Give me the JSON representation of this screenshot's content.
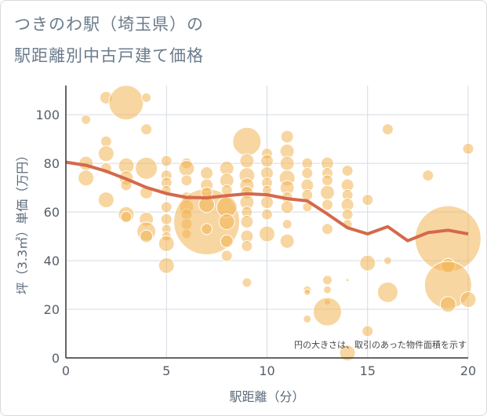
{
  "title_lines": [
    "つきのわ駅（埼玉県）の",
    "駅距離別中古戸建て価格"
  ],
  "chart_data": {
    "type": "scatter",
    "xlabel": "駅距離（分）",
    "ylabel": "坪（3.3㎡）単価（万円）",
    "note": "円の大きさは、取引のあった物件面積を示す",
    "xlim": [
      0,
      20
    ],
    "ylim": [
      0,
      112
    ],
    "xticks": [
      0,
      5,
      10,
      15,
      20
    ],
    "yticks": [
      0,
      20,
      40,
      60,
      80,
      100
    ],
    "colors": {
      "bubble": "#f3b453",
      "trend": "#d4694c",
      "grid": "#d3dae3"
    },
    "bubbles": [
      {
        "x": 1,
        "y": 98,
        "s": 6
      },
      {
        "x": 2,
        "y": 107,
        "s": 8
      },
      {
        "x": 3,
        "y": 105,
        "s": 22
      },
      {
        "x": 4,
        "y": 107,
        "s": 6
      },
      {
        "x": 1,
        "y": 80,
        "s": 9
      },
      {
        "x": 1,
        "y": 74,
        "s": 10
      },
      {
        "x": 2,
        "y": 89,
        "s": 7
      },
      {
        "x": 2,
        "y": 84,
        "s": 10
      },
      {
        "x": 2,
        "y": 78,
        "s": 7
      },
      {
        "x": 2,
        "y": 65,
        "s": 10
      },
      {
        "x": 3,
        "y": 79,
        "s": 10
      },
      {
        "x": 3,
        "y": 74,
        "s": 9
      },
      {
        "x": 3,
        "y": 71,
        "s": 7
      },
      {
        "x": 3,
        "y": 59,
        "s": 10
      },
      {
        "x": 3,
        "y": 58,
        "s": 7
      },
      {
        "x": 4,
        "y": 94,
        "s": 7
      },
      {
        "x": 4,
        "y": 78,
        "s": 14
      },
      {
        "x": 4,
        "y": 68,
        "s": 8
      },
      {
        "x": 4,
        "y": 57,
        "s": 9
      },
      {
        "x": 4,
        "y": 52,
        "s": 12
      },
      {
        "x": 4,
        "y": 50,
        "s": 8
      },
      {
        "x": 5,
        "y": 81,
        "s": 7
      },
      {
        "x": 5,
        "y": 75,
        "s": 7
      },
      {
        "x": 5,
        "y": 72,
        "s": 7
      },
      {
        "x": 5,
        "y": 69,
        "s": 6
      },
      {
        "x": 5,
        "y": 62,
        "s": 7
      },
      {
        "x": 5,
        "y": 57,
        "s": 7
      },
      {
        "x": 5,
        "y": 53,
        "s": 6
      },
      {
        "x": 5,
        "y": 50,
        "s": 6
      },
      {
        "x": 5,
        "y": 47,
        "s": 10
      },
      {
        "x": 5,
        "y": 38,
        "s": 10
      },
      {
        "x": 6,
        "y": 80,
        "s": 7
      },
      {
        "x": 6,
        "y": 78,
        "s": 10
      },
      {
        "x": 6,
        "y": 73,
        "s": 7
      },
      {
        "x": 6,
        "y": 66,
        "s": 7
      },
      {
        "x": 6,
        "y": 62,
        "s": 9
      },
      {
        "x": 6,
        "y": 59,
        "s": 7
      },
      {
        "x": 6,
        "y": 55,
        "s": 7
      },
      {
        "x": 6,
        "y": 51,
        "s": 6
      },
      {
        "x": 7,
        "y": 56,
        "s": 42
      },
      {
        "x": 7,
        "y": 76,
        "s": 8
      },
      {
        "x": 7,
        "y": 71,
        "s": 8
      },
      {
        "x": 7,
        "y": 68,
        "s": 7
      },
      {
        "x": 7,
        "y": 63,
        "s": 10
      },
      {
        "x": 7,
        "y": 53,
        "s": 7
      },
      {
        "x": 8,
        "y": 78,
        "s": 9
      },
      {
        "x": 8,
        "y": 73,
        "s": 9
      },
      {
        "x": 8,
        "y": 69,
        "s": 7
      },
      {
        "x": 8,
        "y": 62,
        "s": 13
      },
      {
        "x": 8,
        "y": 56,
        "s": 10
      },
      {
        "x": 8,
        "y": 48,
        "s": 8
      },
      {
        "x": 8,
        "y": 42,
        "s": 7
      },
      {
        "x": 9,
        "y": 89,
        "s": 18
      },
      {
        "x": 9,
        "y": 81,
        "s": 9
      },
      {
        "x": 9,
        "y": 75,
        "s": 10
      },
      {
        "x": 9,
        "y": 71,
        "s": 9
      },
      {
        "x": 9,
        "y": 68,
        "s": 8
      },
      {
        "x": 9,
        "y": 64,
        "s": 9
      },
      {
        "x": 9,
        "y": 60,
        "s": 7
      },
      {
        "x": 9,
        "y": 56,
        "s": 8
      },
      {
        "x": 9,
        "y": 50,
        "s": 8
      },
      {
        "x": 9,
        "y": 46,
        "s": 7
      },
      {
        "x": 9,
        "y": 31,
        "s": 6
      },
      {
        "x": 10,
        "y": 84,
        "s": 7
      },
      {
        "x": 10,
        "y": 81,
        "s": 8
      },
      {
        "x": 10,
        "y": 76,
        "s": 8
      },
      {
        "x": 10,
        "y": 72,
        "s": 7
      },
      {
        "x": 10,
        "y": 69,
        "s": 6
      },
      {
        "x": 10,
        "y": 64,
        "s": 8
      },
      {
        "x": 10,
        "y": 59,
        "s": 7
      },
      {
        "x": 10,
        "y": 51,
        "s": 10
      },
      {
        "x": 11,
        "y": 91,
        "s": 8
      },
      {
        "x": 11,
        "y": 85,
        "s": 9
      },
      {
        "x": 11,
        "y": 80,
        "s": 9
      },
      {
        "x": 11,
        "y": 74,
        "s": 10
      },
      {
        "x": 11,
        "y": 70,
        "s": 9
      },
      {
        "x": 11,
        "y": 66,
        "s": 7
      },
      {
        "x": 11,
        "y": 62,
        "s": 8
      },
      {
        "x": 11,
        "y": 55,
        "s": 6
      },
      {
        "x": 11,
        "y": 48,
        "s": 9
      },
      {
        "x": 12,
        "y": 80,
        "s": 7
      },
      {
        "x": 12,
        "y": 76,
        "s": 7
      },
      {
        "x": 12,
        "y": 71,
        "s": 8
      },
      {
        "x": 12,
        "y": 67,
        "s": 7
      },
      {
        "x": 12,
        "y": 62,
        "s": 6
      },
      {
        "x": 12,
        "y": 28,
        "s": 5
      },
      {
        "x": 12,
        "y": 27,
        "s": 4
      },
      {
        "x": 12,
        "y": 16,
        "s": 5
      },
      {
        "x": 13,
        "y": 80,
        "s": 8
      },
      {
        "x": 13,
        "y": 76,
        "s": 7
      },
      {
        "x": 13,
        "y": 73,
        "s": 7
      },
      {
        "x": 13,
        "y": 68,
        "s": 9
      },
      {
        "x": 13,
        "y": 63,
        "s": 7
      },
      {
        "x": 13,
        "y": 53,
        "s": 7
      },
      {
        "x": 13,
        "y": 32,
        "s": 6
      },
      {
        "x": 13,
        "y": 28,
        "s": 5
      },
      {
        "x": 13,
        "y": 23,
        "s": 4
      },
      {
        "x": 13,
        "y": 19,
        "s": 18
      },
      {
        "x": 14,
        "y": 77,
        "s": 7
      },
      {
        "x": 14,
        "y": 71,
        "s": 8
      },
      {
        "x": 14,
        "y": 67,
        "s": 7
      },
      {
        "x": 14,
        "y": 63,
        "s": 8
      },
      {
        "x": 14,
        "y": 59,
        "s": 7
      },
      {
        "x": 14,
        "y": 55,
        "s": 6
      },
      {
        "x": 14,
        "y": 32,
        "s": 2
      },
      {
        "x": 14,
        "y": 2,
        "s": 10
      },
      {
        "x": 15,
        "y": 65,
        "s": 7
      },
      {
        "x": 15,
        "y": 39,
        "s": 10
      },
      {
        "x": 15,
        "y": 11,
        "s": 7
      },
      {
        "x": 16,
        "y": 94,
        "s": 7
      },
      {
        "x": 16,
        "y": 40,
        "s": 5
      },
      {
        "x": 16,
        "y": 27,
        "s": 13
      },
      {
        "x": 18,
        "y": 75,
        "s": 7
      },
      {
        "x": 19,
        "y": 49,
        "s": 42
      },
      {
        "x": 19,
        "y": 38,
        "s": 9
      },
      {
        "x": 19,
        "y": 30,
        "s": 30
      },
      {
        "x": 19,
        "y": 22,
        "s": 10
      },
      {
        "x": 20,
        "y": 86,
        "s": 7
      },
      {
        "x": 20,
        "y": 24,
        "s": 10
      }
    ],
    "trend": {
      "x": [
        0,
        1,
        2,
        3,
        4,
        5,
        6,
        7,
        8,
        9,
        10,
        11,
        12,
        13,
        14,
        15,
        16,
        17,
        18,
        19,
        20
      ],
      "y": [
        80.5,
        79.2,
        76.8,
        73.6,
        70.1,
        67.6,
        66.0,
        65.8,
        66.7,
        67.5,
        67.1,
        65.5,
        64.6,
        59.2,
        53.5,
        51.0,
        54.0,
        48.2,
        51.5,
        52.5,
        51.0
      ]
    }
  }
}
